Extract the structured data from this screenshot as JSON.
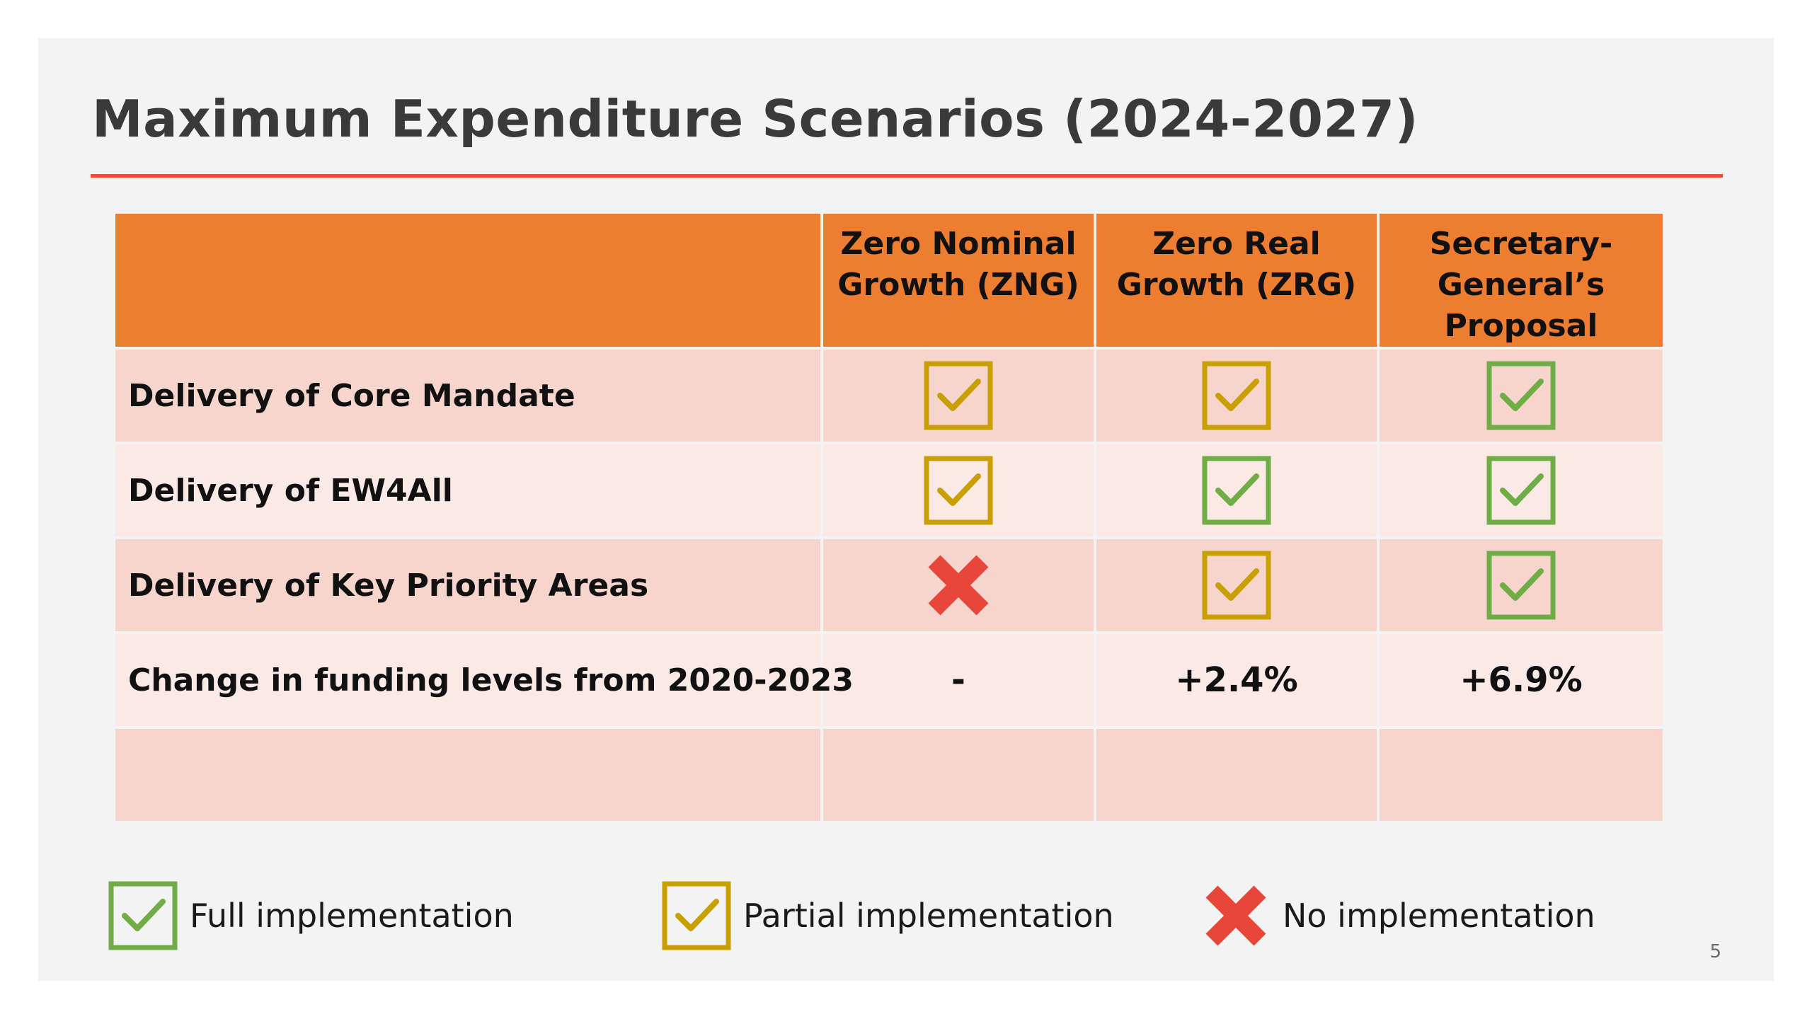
{
  "slide": {
    "title": "Maximum Expenditure Scenarios (2024-2027)",
    "page_number": "5"
  },
  "colors": {
    "accent_orange": "#ed7d31",
    "title_rule": "#e5502f",
    "row_dark": "#f6d5cc",
    "row_light": "#fae9e5",
    "full_green": "#70ad47",
    "partial_gold": "#c9a000",
    "none_red": "#e8463a"
  },
  "table": {
    "headers": [
      "",
      "Zero Nominal Growth (ZNG)",
      "Zero Real Growth (ZRG)",
      "Secretary-General’s Proposal"
    ],
    "rows": [
      {
        "label": "Delivery of Core Mandate",
        "cells": [
          "partial",
          "partial",
          "full"
        ]
      },
      {
        "label": "Delivery of EW4All",
        "cells": [
          "partial",
          "full",
          "full"
        ]
      },
      {
        "label": "Delivery of Key Priority Areas",
        "cells": [
          "none",
          "partial",
          "full"
        ]
      },
      {
        "label": "Change in funding levels from 2020-2023",
        "values": [
          "-",
          "+2.4%",
          "+6.9%"
        ]
      }
    ]
  },
  "legend": {
    "full": {
      "icon": "green-check-box-icon",
      "label": "Full implementation"
    },
    "partial": {
      "icon": "gold-check-box-icon",
      "label": "Partial implementation"
    },
    "none": {
      "icon": "red-cross-icon",
      "label": "No implementation"
    }
  }
}
